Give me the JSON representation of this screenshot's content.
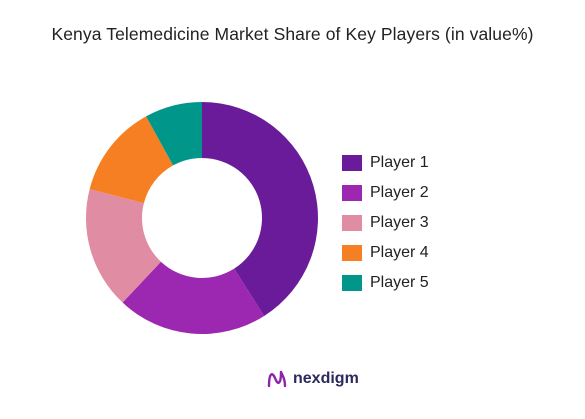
{
  "chart_data": {
    "type": "pie",
    "title": "Kenya Telemedicine Market Share of Key Players (in value%)",
    "categories": [
      "Player 1",
      "Player 2",
      "Player 3",
      "Player 4",
      "Player 5"
    ],
    "values": [
      41,
      21,
      17,
      13,
      8
    ],
    "colors": [
      "#6a1b9a",
      "#9c27b0",
      "#e08ca3",
      "#f57f22",
      "#00968a"
    ],
    "legend_position": "right",
    "donut": true
  },
  "brand": {
    "name": "nexdigm",
    "logo_icon": "nexdigm-logo-icon",
    "logo_color": "#8e24aa"
  }
}
